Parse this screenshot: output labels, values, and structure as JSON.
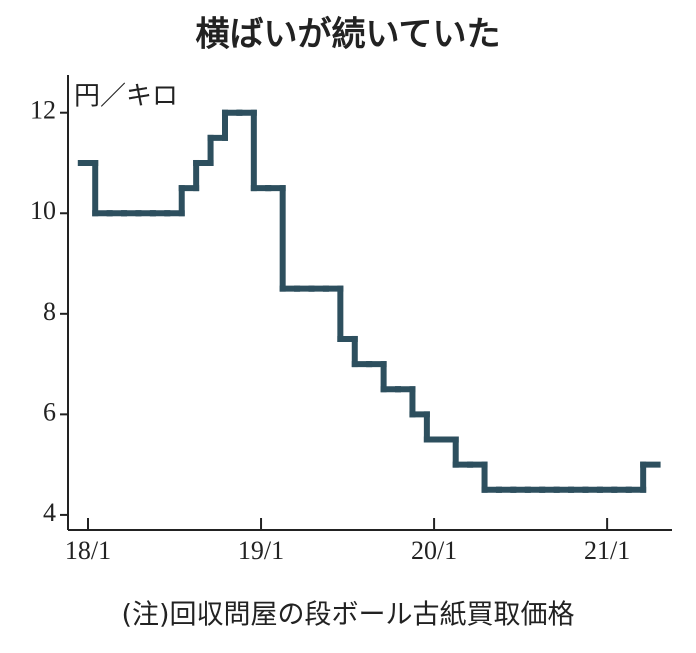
{
  "chart_data": {
    "type": "line",
    "title": "横ばいが続いていた",
    "y_unit": "円／キロ",
    "note": "(注)回収問屋の段ボール古紙買取価格",
    "categories": [
      "18/1",
      null,
      null,
      null,
      null,
      null,
      null,
      null,
      null,
      null,
      null,
      null,
      "19/1",
      null,
      null,
      null,
      null,
      null,
      null,
      null,
      null,
      null,
      null,
      null,
      "20/1",
      null,
      null,
      null,
      null,
      null,
      null,
      null,
      null,
      null,
      null,
      null,
      "21/1",
      null,
      null,
      null
    ],
    "series": [
      {
        "name": "段ボール古紙買取価格",
        "color": "#2d4f5e",
        "values": [
          11,
          10,
          10,
          10,
          10,
          10,
          10,
          10.5,
          11,
          11.5,
          12,
          12,
          10.5,
          10.5,
          8.5,
          8.5,
          8.5,
          8.5,
          7.5,
          7,
          7,
          6.5,
          6.5,
          6,
          5.5,
          5.5,
          5,
          5,
          4.5,
          4.5,
          4.5,
          4.5,
          4.5,
          4.5,
          4.5,
          4.5,
          4.5,
          4.5,
          4.5,
          5
        ]
      }
    ],
    "ylim": [
      3.7,
      12.75
    ],
    "yticks": [
      4,
      6,
      8,
      10,
      12
    ]
  }
}
